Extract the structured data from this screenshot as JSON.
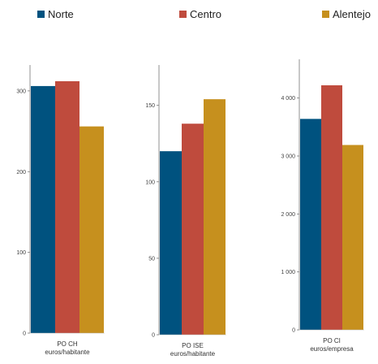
{
  "legend": [
    {
      "name": "Norte",
      "color": "#00527f"
    },
    {
      "name": "Centro",
      "color": "#bf4b3d"
    },
    {
      "name": "Alentejo",
      "color": "#c6901e"
    }
  ],
  "chart_data": [
    {
      "type": "bar",
      "categories": [
        "Norte",
        "Centro",
        "Alentejo"
      ],
      "values": [
        306,
        312,
        256
      ],
      "xlabel": "PO CH\neuros/habitante",
      "ylim": [
        0,
        320
      ],
      "yticks": [
        0,
        100,
        200,
        300
      ],
      "grid": false,
      "legend": "top"
    },
    {
      "type": "bar",
      "categories": [
        "Norte",
        "Centro",
        "Alentejo"
      ],
      "values": [
        120,
        138,
        154
      ],
      "xlabel": "PO ISE\neuros/habitante",
      "ylim": [
        0,
        170
      ],
      "yticks": [
        0,
        50,
        100,
        150
      ],
      "grid": false,
      "legend": "top"
    },
    {
      "type": "bar",
      "categories": [
        "Norte",
        "Centro",
        "Alentejo"
      ],
      "values": [
        3640,
        4220,
        3190
      ],
      "xlabel": "PO CI\neuros/empresa",
      "ylim": [
        0,
        4500
      ],
      "yticks": [
        0,
        1000,
        2000,
        3000,
        4000
      ],
      "yticklabels": [
        "0",
        "1 000",
        "2 000",
        "3 000",
        "4 000"
      ],
      "grid": false,
      "legend": "top"
    }
  ]
}
